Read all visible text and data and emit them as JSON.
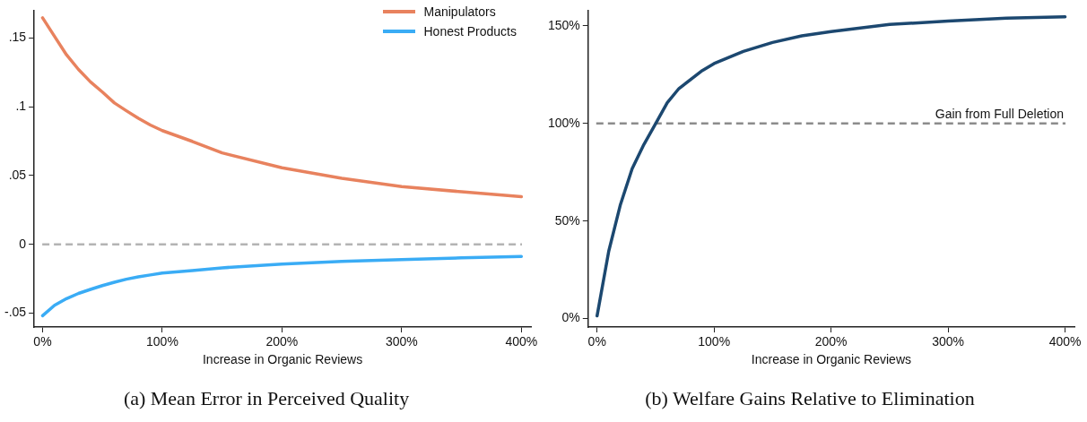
{
  "chart_data": [
    {
      "type": "line",
      "title": "(a) Mean Error in Perceived Quality",
      "xlabel": "Increase in Organic Reviews",
      "x": [
        0,
        10,
        20,
        30,
        40,
        50,
        60,
        70,
        80,
        90,
        100,
        125,
        150,
        200,
        250,
        300,
        350,
        400
      ],
      "series": [
        {
          "name": "Manipulators",
          "color": "#e8825e",
          "values": [
            0.1645,
            0.151,
            0.1376,
            0.127,
            0.118,
            0.1106,
            0.1027,
            0.097,
            0.0915,
            0.0867,
            0.0826,
            0.0748,
            0.0664,
            0.0556,
            0.048,
            0.042,
            0.0382,
            0.0346
          ]
        },
        {
          "name": "Honest Products",
          "color": "#3aacf5",
          "values": [
            -0.0518,
            -0.0442,
            -0.0394,
            -0.0356,
            -0.0327,
            -0.0299,
            -0.0275,
            -0.0253,
            -0.0236,
            -0.0222,
            -0.0208,
            -0.019,
            -0.017,
            -0.0143,
            -0.0124,
            -0.011,
            -0.0098,
            -0.0088
          ]
        }
      ],
      "xlim": [
        -7,
        408
      ],
      "xticks": [
        {
          "value": 0,
          "label": "0%"
        },
        {
          "value": 100,
          "label": "100%"
        },
        {
          "value": 200,
          "label": "200%"
        },
        {
          "value": 300,
          "label": "300%"
        },
        {
          "value": 400,
          "label": "400%"
        }
      ],
      "ylim": [
        -0.06,
        0.17
      ],
      "yticks": [
        {
          "value": -0.05,
          "label": "-.05"
        },
        0,
        {
          "value": 0.05,
          "label": ".05"
        },
        {
          "value": 0.1,
          "label": ".1"
        },
        {
          "value": 0.15,
          "label": ".15"
        }
      ],
      "ref_lines": [
        {
          "axis": "y",
          "value": 0,
          "color": "#b4b4b4",
          "line_style": "dashed"
        }
      ],
      "legend": "top right",
      "grid": false,
      "marker": "none",
      "line_style": "solid"
    },
    {
      "type": "line",
      "title": "(b) Welfare Gains Relative to Elimination",
      "xlabel": "Increase in Organic Reviews",
      "x": [
        0,
        10,
        20,
        30,
        40,
        50,
        60,
        70,
        90,
        100,
        125,
        150,
        175,
        200,
        250,
        300,
        350,
        400
      ],
      "series": [
        {
          "color": "#1c4870",
          "values": [
            1.4,
            34.6,
            58.5,
            76.8,
            89.2,
            99.8,
            110.6,
            117.9,
            127.1,
            130.7,
            136.9,
            141.5,
            144.9,
            147.1,
            150.7,
            152.4,
            153.9,
            154.6
          ]
        }
      ],
      "xlim": [
        -7.6,
        408
      ],
      "xticks": [
        {
          "value": 0,
          "label": "0%"
        },
        {
          "value": 100,
          "label": "100%"
        },
        {
          "value": 200,
          "label": "200%"
        },
        {
          "value": 300,
          "label": "300%"
        },
        {
          "value": 400,
          "label": "400%"
        }
      ],
      "ylim": [
        -4.3,
        158
      ],
      "yticks": [
        {
          "value": 0,
          "label": "0%"
        },
        {
          "value": 50,
          "label": "50%"
        },
        {
          "value": 100,
          "label": "100%"
        },
        {
          "value": 150,
          "label": "150%"
        }
      ],
      "ref_lines": [
        {
          "axis": "y",
          "value": 100,
          "label": "Gain from Full Deletion",
          "color": "#8c8c8c",
          "line_style": "dashed"
        }
      ],
      "legend": false,
      "grid": false,
      "marker": "none",
      "line_style": "solid"
    }
  ]
}
